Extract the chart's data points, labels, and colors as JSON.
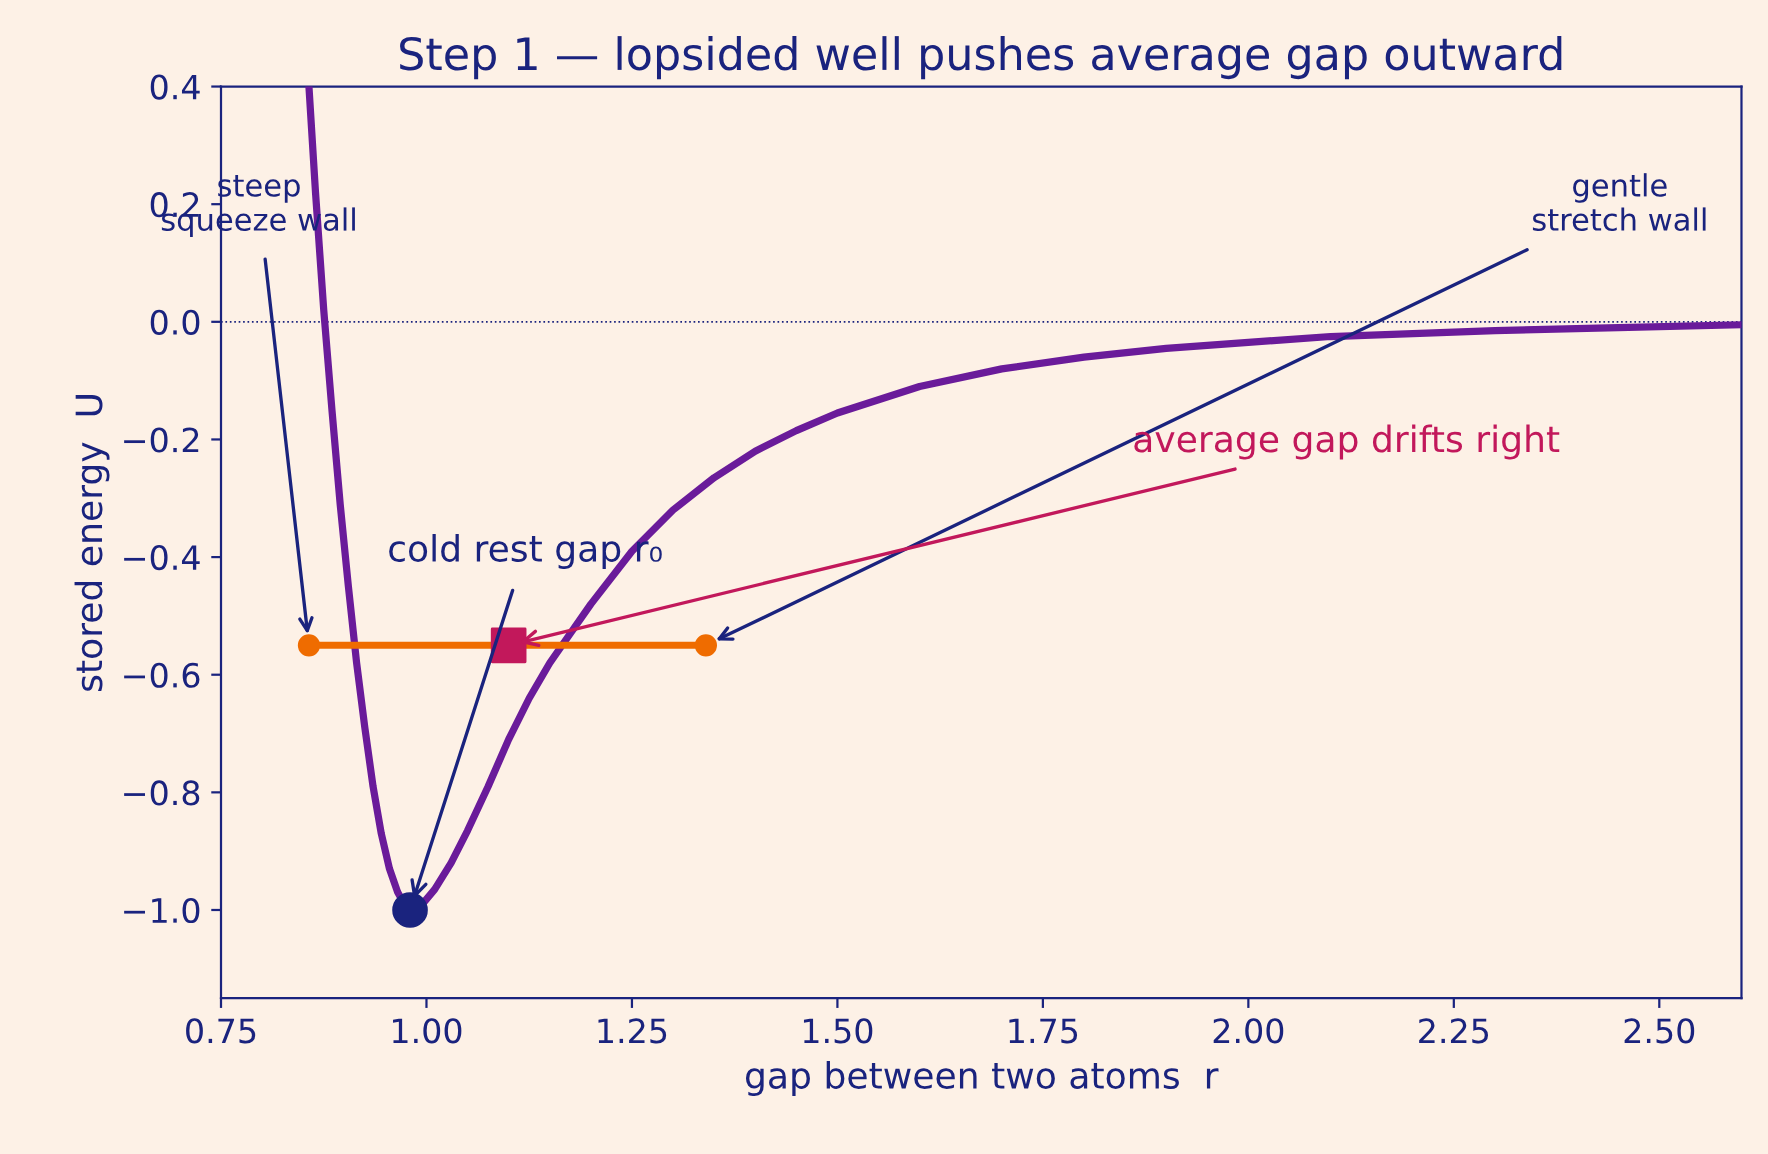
{
  "chart_data": {
    "type": "line",
    "title": "Step 1 — lopsided well pushes average gap outward",
    "xlabel": "gap between two atoms  r",
    "ylabel": "stored energy  U",
    "xlim": [
      0.75,
      2.6
    ],
    "xticks": [
      {
        "value": 0.75,
        "label": "0.75"
      },
      {
        "value": 1.0,
        "label": "1.00"
      },
      {
        "value": 1.25,
        "label": "1.25"
      },
      {
        "value": 1.5,
        "label": "1.50"
      },
      {
        "value": 1.75,
        "label": "1.75"
      },
      {
        "value": 2.0,
        "label": "2.00"
      },
      {
        "value": 2.25,
        "label": "2.25"
      },
      {
        "value": 2.5,
        "label": "2.50"
      }
    ],
    "ylim": [
      -1.15,
      0.4
    ],
    "yticks": [
      {
        "value": -1.0,
        "label": "−1.0"
      },
      {
        "value": -0.8,
        "label": "−0.8"
      },
      {
        "value": -0.6,
        "label": "−0.6"
      },
      {
        "value": -0.4,
        "label": "−0.4"
      },
      {
        "value": -0.2,
        "label": "−0.2"
      },
      {
        "value": 0.0,
        "label": "0.0"
      },
      {
        "value": 0.2,
        "label": "0.2"
      },
      {
        "value": 0.4,
        "label": "0.4"
      }
    ],
    "grid": false,
    "legend": false,
    "ref_lines": [
      {
        "axis": "y",
        "value": 0,
        "color": "#1a237e",
        "line_style": "dotted"
      }
    ],
    "series": [
      {
        "color": "#6a1b9a",
        "marker": "none",
        "x": [
          0.857,
          0.865,
          0.875,
          0.885,
          0.895,
          0.905,
          0.915,
          0.925,
          0.935,
          0.945,
          0.955,
          0.965,
          0.975,
          0.985,
          0.995,
          1.01,
          1.03,
          1.05,
          1.075,
          1.1,
          1.125,
          1.15,
          1.175,
          1.2,
          1.25,
          1.3,
          1.35,
          1.4,
          1.45,
          1.5,
          1.6,
          1.7,
          1.8,
          1.9,
          2.0,
          2.1,
          2.2,
          2.3,
          2.45,
          2.6
        ],
        "values": [
          0.4,
          0.22,
          0.02,
          -0.15,
          -0.31,
          -0.45,
          -0.58,
          -0.69,
          -0.79,
          -0.87,
          -0.93,
          -0.97,
          -0.995,
          -0.998,
          -0.99,
          -0.965,
          -0.92,
          -0.865,
          -0.79,
          -0.71,
          -0.64,
          -0.58,
          -0.53,
          -0.48,
          -0.39,
          -0.32,
          -0.265,
          -0.22,
          -0.185,
          -0.155,
          -0.11,
          -0.08,
          -0.06,
          -0.045,
          -0.035,
          -0.025,
          -0.02,
          -0.015,
          -0.01,
          -0.005
        ]
      },
      {
        "color": "#ef6c00",
        "marker": "circle",
        "x": [
          0.857,
          1.34
        ],
        "values": [
          -0.55,
          -0.55
        ]
      },
      {
        "type": "scatter",
        "color": "#c2185b",
        "marker": "square",
        "x": [
          1.1
        ],
        "values": [
          -0.55
        ]
      },
      {
        "type": "scatter",
        "color": "#1a237e",
        "marker": "circle",
        "x": [
          0.98
        ],
        "values": [
          -1.0
        ]
      }
    ],
    "annotations": [
      {
        "text": "steep\nsqueeze wall",
        "x": 0.857,
        "y": -0.55
      },
      {
        "text": "gentle\nstretch wall",
        "x": 1.34,
        "y": -0.55
      },
      {
        "text": "average gap drifts right",
        "x": 1.1,
        "y": -0.55
      },
      {
        "text": "cold rest gap r₀",
        "x": 0.98,
        "y": -1.0
      }
    ]
  }
}
